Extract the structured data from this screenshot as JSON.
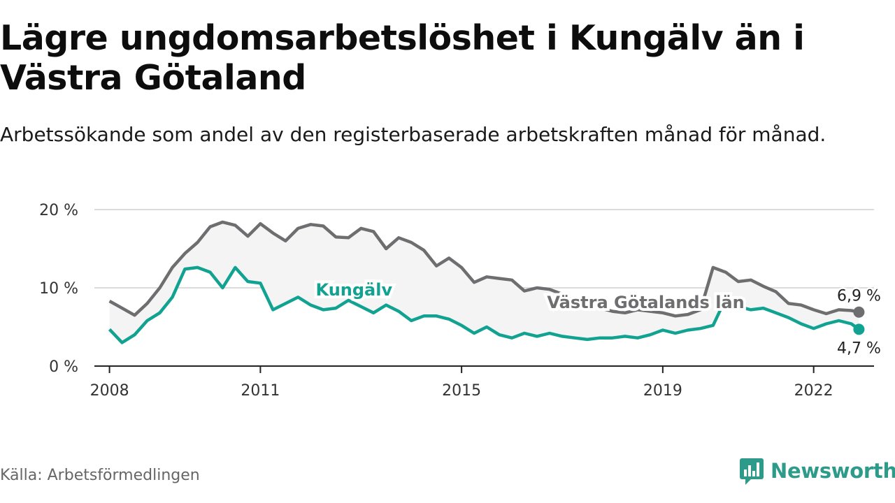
{
  "title": "Lägre ungdomsarbetslöshet i Kungälv än i Västra Götaland",
  "subtitle": "Arbetssökande som andel av den registerbaserade arbetskraften månad för månad.",
  "source": "Källa: Arbetsförmedlingen",
  "brand": "Newsworthy",
  "colors": {
    "kungalv": "#11a291",
    "vastra": "#6e6e70",
    "band": "#f4f4f5",
    "grid": "#dcdcdc",
    "axis": "#222222",
    "brand": "#2e9b8a"
  },
  "chart_data": {
    "type": "line",
    "title": "Lägre ungdomsarbetslöshet i Kungälv än i Västra Götaland",
    "xlabel": "",
    "ylabel": "",
    "ylim": [
      0,
      20
    ],
    "xlim": [
      2007.7,
      2023.2
    ],
    "y_ticks": [
      0,
      10,
      20
    ],
    "y_tick_labels": [
      "0 %",
      "10 %",
      "20 %"
    ],
    "x_ticks": [
      2008,
      2011,
      2015,
      2019,
      2022
    ],
    "x_tick_labels": [
      "2008",
      "2011",
      "2015",
      "2019",
      "2022"
    ],
    "series": [
      {
        "name": "Västra Götalands län",
        "label": "Västra Götalands län",
        "end_label": "6,9 %",
        "x": [
          2008.0,
          2008.25,
          2008.5,
          2008.75,
          2009.0,
          2009.25,
          2009.5,
          2009.75,
          2010.0,
          2010.25,
          2010.5,
          2010.75,
          2011.0,
          2011.25,
          2011.5,
          2011.75,
          2012.0,
          2012.25,
          2012.5,
          2012.75,
          2013.0,
          2013.25,
          2013.5,
          2013.75,
          2014.0,
          2014.25,
          2014.5,
          2014.75,
          2015.0,
          2015.25,
          2015.5,
          2015.75,
          2016.0,
          2016.25,
          2016.5,
          2016.75,
          2017.0,
          2017.25,
          2017.5,
          2017.75,
          2018.0,
          2018.25,
          2018.5,
          2018.75,
          2019.0,
          2019.25,
          2019.5,
          2019.75,
          2020.0,
          2020.25,
          2020.5,
          2020.75,
          2021.0,
          2021.25,
          2021.5,
          2021.75,
          2022.0,
          2022.25,
          2022.5,
          2022.75,
          2022.9
        ],
        "values": [
          8.3,
          7.4,
          6.5,
          8.0,
          10.0,
          12.6,
          14.4,
          15.8,
          17.8,
          18.4,
          18.0,
          16.6,
          18.2,
          17.0,
          16.0,
          17.6,
          18.1,
          17.9,
          16.5,
          16.4,
          17.6,
          17.2,
          15.0,
          16.4,
          15.8,
          14.8,
          12.8,
          13.8,
          12.6,
          10.7,
          11.4,
          11.2,
          11.0,
          9.6,
          10.0,
          9.8,
          9.2,
          8.2,
          7.8,
          7.4,
          7.0,
          6.8,
          7.2,
          7.0,
          6.8,
          6.4,
          6.6,
          7.2,
          12.6,
          12.0,
          10.8,
          11.0,
          10.2,
          9.5,
          8.0,
          7.8,
          7.2,
          6.7,
          7.2,
          7.1,
          6.9
        ]
      },
      {
        "name": "Kungälv",
        "label": "Kungälv",
        "end_label": "4,7 %",
        "x": [
          2008.0,
          2008.25,
          2008.5,
          2008.75,
          2009.0,
          2009.25,
          2009.5,
          2009.75,
          2010.0,
          2010.25,
          2010.5,
          2010.75,
          2011.0,
          2011.25,
          2011.5,
          2011.75,
          2012.0,
          2012.25,
          2012.5,
          2012.75,
          2013.0,
          2013.25,
          2013.5,
          2013.75,
          2014.0,
          2014.25,
          2014.5,
          2014.75,
          2015.0,
          2015.25,
          2015.5,
          2015.75,
          2016.0,
          2016.25,
          2016.5,
          2016.75,
          2017.0,
          2017.25,
          2017.5,
          2017.75,
          2018.0,
          2018.25,
          2018.5,
          2018.75,
          2019.0,
          2019.25,
          2019.5,
          2019.75,
          2020.0,
          2020.25,
          2020.5,
          2020.75,
          2021.0,
          2021.25,
          2021.5,
          2021.75,
          2022.0,
          2022.25,
          2022.5,
          2022.75,
          2022.9
        ],
        "values": [
          4.7,
          3.0,
          4.0,
          5.8,
          6.8,
          8.8,
          12.4,
          12.6,
          12.0,
          10.0,
          12.6,
          10.8,
          10.6,
          7.2,
          8.0,
          8.8,
          7.8,
          7.2,
          7.4,
          8.4,
          7.6,
          6.8,
          7.8,
          7.0,
          5.8,
          6.4,
          6.4,
          6.0,
          5.2,
          4.2,
          5.0,
          4.0,
          3.6,
          4.2,
          3.8,
          4.2,
          3.8,
          3.6,
          3.4,
          3.6,
          3.6,
          3.8,
          3.6,
          4.0,
          4.6,
          4.2,
          4.6,
          4.8,
          5.2,
          8.6,
          7.6,
          7.2,
          7.4,
          6.8,
          6.2,
          5.4,
          4.8,
          5.4,
          5.8,
          5.4,
          4.7
        ]
      }
    ]
  }
}
